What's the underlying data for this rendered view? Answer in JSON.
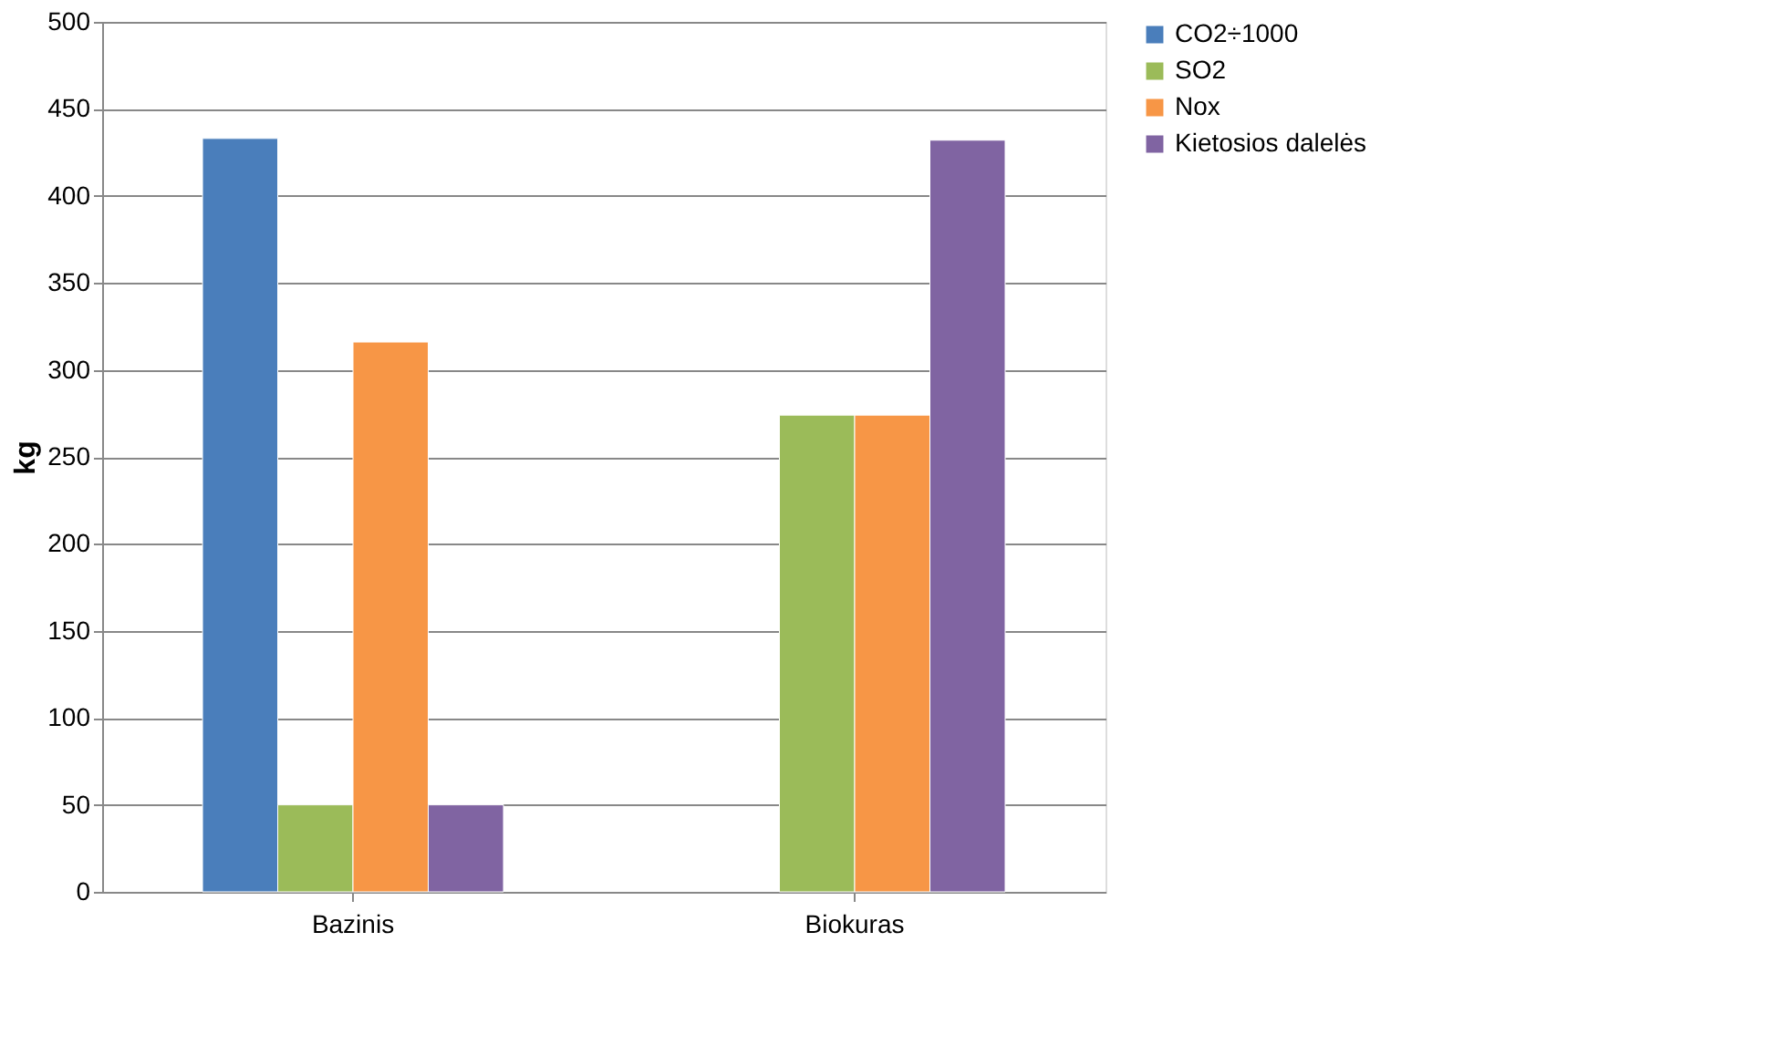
{
  "chart_data": {
    "type": "bar",
    "ylabel": "kg",
    "categories": [
      "Bazinis",
      "Biokuras"
    ],
    "series": [
      {
        "name": "CO2÷1000",
        "color": "#4a7ebb",
        "values": [
          433,
          null
        ]
      },
      {
        "name": "SO2",
        "color": "#9bbb59",
        "values": [
          50,
          274
        ]
      },
      {
        "name": "Nox",
        "color": "#f79646",
        "values": [
          316,
          274
        ]
      },
      {
        "name": "Kietosios dalelės",
        "color": "#8064a2",
        "values": [
          50,
          432
        ]
      }
    ],
    "ylim": [
      0,
      500
    ],
    "yticks": [
      0,
      50,
      100,
      150,
      200,
      250,
      300,
      350,
      400,
      450,
      500
    ],
    "grid": "y",
    "legend": "right"
  }
}
